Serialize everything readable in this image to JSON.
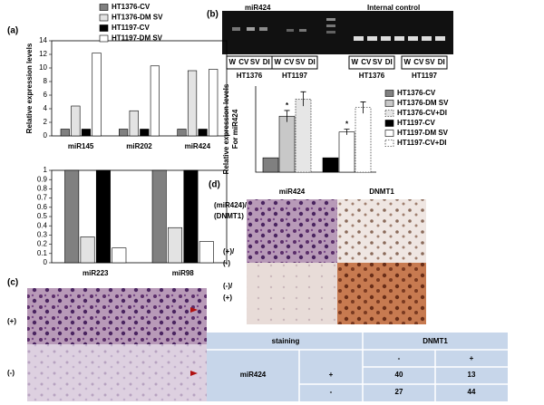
{
  "panel_labels": [
    "(a)",
    "(b)",
    "(c)",
    "(d)"
  ],
  "chart_data": [
    {
      "type": "bar",
      "y_label": "Relative expression levels",
      "legend": "top",
      "frame": true,
      "categories": [
        "miR145",
        "miR202",
        "miR424"
      ],
      "series": [
        {
          "name": "HT1376-CV",
          "color": "#808080",
          "values": [
            1,
            1,
            1
          ]
        },
        {
          "name": "HT1376-DM SV",
          "color": "#e3e3e3",
          "values": [
            4.4,
            3.7,
            9.6
          ]
        },
        {
          "name": "HT1197-CV",
          "color": "#000000",
          "values": [
            1,
            1,
            1
          ]
        },
        {
          "name": "HT1197-DM SV",
          "color": "#ffffff",
          "values": [
            12.2,
            10.3,
            9.8
          ]
        }
      ],
      "ylim": [
        0,
        14
      ],
      "yticks": [
        0,
        2,
        4,
        6,
        8,
        10,
        12,
        14
      ]
    },
    {
      "type": "bar",
      "frame": true,
      "categories": [
        "miR223",
        "miR98"
      ],
      "series": [
        {
          "color": "#808080",
          "values": [
            1,
            1
          ]
        },
        {
          "color": "#e3e3e3",
          "values": [
            0.28,
            0.38
          ]
        },
        {
          "color": "#000000",
          "values": [
            1,
            1
          ]
        },
        {
          "color": "#ffffff",
          "values": [
            0.16,
            0.23
          ]
        }
      ],
      "ylim": [
        0,
        1
      ],
      "yticks": [
        0,
        0.1,
        0.2,
        0.3,
        0.4,
        0.5,
        0.6,
        0.7,
        0.8,
        0.9,
        1
      ]
    },
    {
      "type": "bar",
      "y_label": [
        "Relative expression levels",
        "For miR424"
      ],
      "legend": "right",
      "frame": false,
      "series": [
        {
          "name": "HT1376-CV",
          "color": "#808080",
          "values": [
            1
          ]
        },
        {
          "name": "HT1376-DM SV",
          "color": "#c8c8c8",
          "values": [
            3.9
          ],
          "errors": [
            0.4
          ],
          "annotation": "*"
        },
        {
          "name": "HT1376-CV+DI",
          "color": "#e6e6e6",
          "border": "dotted",
          "values": [
            5.1
          ],
          "errors": [
            0.5
          ]
        },
        {
          "name": "HT1197-CV",
          "color": "#000000",
          "values": [
            1
          ]
        },
        {
          "name": "HT1197-DM SV",
          "color": "#ffffff",
          "values": [
            2.8
          ],
          "errors": [
            0.2
          ],
          "annotation": "*"
        },
        {
          "name": "HT1197-CV+DI",
          "color": "#ffffff",
          "border": "dotted",
          "values": [
            4.5
          ],
          "errors": [
            0.4
          ]
        }
      ],
      "ylim": [
        0,
        6
      ]
    }
  ],
  "gel": {
    "left_label": "miR424",
    "right_label": "Internal control",
    "lanes": [
      "W",
      "CV",
      "SV",
      "DI"
    ],
    "groups": [
      "HT1376",
      "HT1197"
    ]
  },
  "panel_c": {
    "rows": [
      "(+)",
      "(-)"
    ]
  },
  "panel_d": {
    "row_header": [
      "(miR424)/",
      "(DNMT1)"
    ],
    "columns": [
      "miR424",
      "DNMT1"
    ],
    "rows": [
      [
        "(+)/",
        "(-)"
      ],
      [
        "(-)/",
        "(+)"
      ]
    ]
  },
  "table": {
    "header": [
      "staining",
      "DNMT1"
    ],
    "subheader": [
      "-",
      "+"
    ],
    "row_label": "miR424",
    "rows": [
      [
        "+",
        40,
        13
      ],
      [
        "-",
        27,
        44
      ]
    ]
  }
}
